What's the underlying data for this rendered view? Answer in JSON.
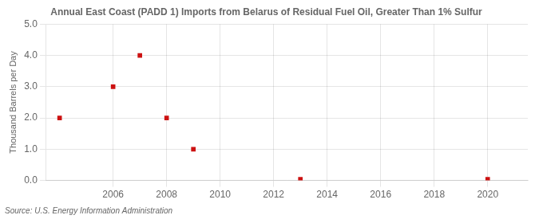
{
  "chart_data": {
    "type": "scatter",
    "title": "Annual East Coast (PADD 1) Imports from Belarus of Residual Fuel Oil, Greater Than 1% Sulfur",
    "ylabel": "Thousand Barrels per Day",
    "source": "Source: U.S. Energy Information Administration",
    "x": [
      2004,
      2006,
      2007,
      2008,
      2009,
      2013,
      2020
    ],
    "values": [
      2.0,
      3.0,
      4.0,
      2.0,
      1.0,
      0.04,
      0.04
    ],
    "color": "#cc1111",
    "marker": "square",
    "xlim": [
      2003.5,
      2021.5
    ],
    "ylim": [
      0.0,
      5.0
    ],
    "xticks": [
      2006,
      2008,
      2010,
      2012,
      2014,
      2016,
      2018,
      2020
    ],
    "yticks": [
      {
        "value": 0,
        "label": "0.0"
      },
      {
        "value": 1,
        "label": "1.0"
      },
      {
        "value": 2,
        "label": "2.0"
      },
      {
        "value": 3,
        "label": "3.0"
      },
      {
        "value": 4,
        "label": "4.0"
      },
      {
        "value": 5,
        "label": "5.0"
      }
    ],
    "grid": true
  }
}
